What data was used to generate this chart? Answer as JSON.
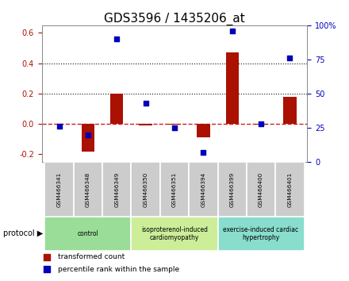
{
  "title": "GDS3596 / 1435206_at",
  "samples": [
    "GSM466341",
    "GSM466348",
    "GSM466349",
    "GSM466350",
    "GSM466351",
    "GSM466394",
    "GSM466399",
    "GSM466400",
    "GSM466401"
  ],
  "transformed_count": [
    0.0,
    -0.18,
    0.2,
    -0.01,
    -0.005,
    -0.09,
    0.47,
    -0.005,
    0.18
  ],
  "percentile_rank_pct": [
    26,
    20,
    90,
    43,
    25,
    7,
    96,
    28,
    76
  ],
  "ylim_left": [
    -0.25,
    0.65
  ],
  "ylim_right": [
    0,
    100
  ],
  "yticks_left": [
    -0.2,
    0.0,
    0.2,
    0.4,
    0.6
  ],
  "yticks_right": [
    0,
    25,
    50,
    75,
    100
  ],
  "bar_color": "#aa1100",
  "dot_color": "#0000bb",
  "zero_line_color": "#cc2222",
  "grid_line_color": "#111111",
  "plot_bg_color": "#ffffff",
  "title_fontsize": 11,
  "tick_fontsize": 7,
  "bar_width": 0.45,
  "group_labels": [
    "control",
    "isoproterenol-induced\ncardiomyopathy",
    "exercise-induced cardiac\nhypertrophy"
  ],
  "group_ranges": [
    [
      0,
      2
    ],
    [
      3,
      5
    ],
    [
      6,
      8
    ]
  ],
  "group_colors": [
    "#99dd99",
    "#ccee99",
    "#88ddcc"
  ]
}
